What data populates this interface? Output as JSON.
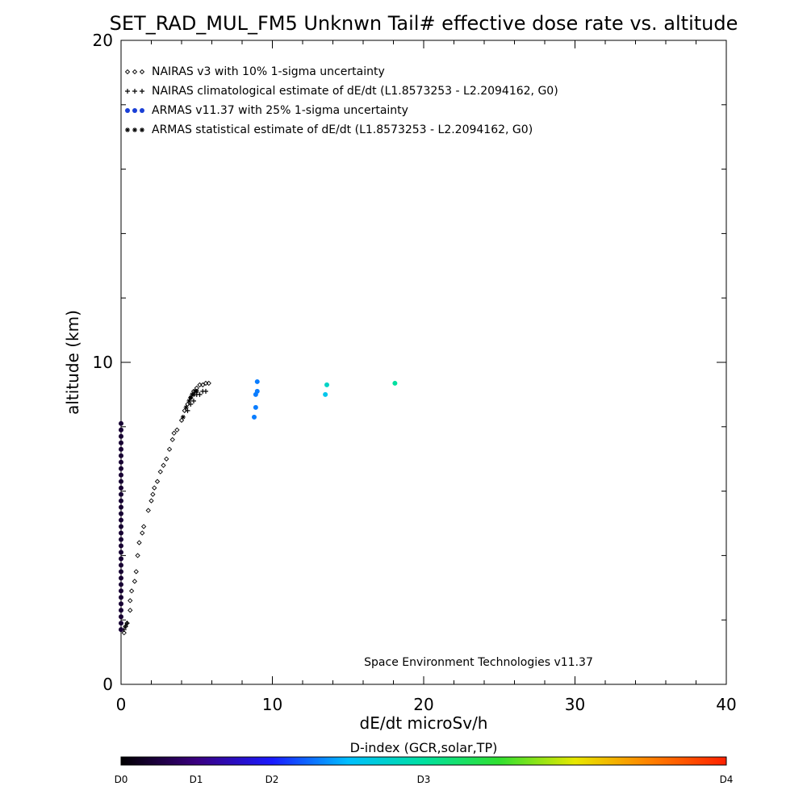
{
  "chart_data": {
    "type": "scatter",
    "title": "SET_RAD_MUL_FM5 Unknwn Tail#  effective dose rate vs. altitude",
    "xlabel": "dE/dt microSv/h",
    "ylabel": "altitude (km)",
    "xlim": [
      0,
      40
    ],
    "ylim": [
      0,
      20
    ],
    "xticks": [
      "0",
      "10",
      "20",
      "30",
      "40"
    ],
    "yticks": [
      "0",
      "10",
      "20"
    ],
    "credit": "Space Environment Technologies v11.37",
    "legend_position": "top-left",
    "legend": [
      {
        "symbol": "◇◇◇",
        "label": "NAIRAS v3 with 10% 1-sigma uncertainty"
      },
      {
        "symbol": "+++",
        "label": "NAIRAS climatological estimate of dE/dt (L1.8573253 - L2.2094162, G0)"
      },
      {
        "symbol": "●●●",
        "label": "ARMAS v11.37 with 25% 1-sigma uncertainty"
      },
      {
        "symbol": "***",
        "label": "ARMAS statistical estimate of dE/dt (L1.8573253 - L2.2094162, G0)"
      }
    ],
    "series": [
      {
        "name": "NAIRAS v3 with 10% 1-sigma uncertainty",
        "marker": "diamond",
        "x": [
          0.2,
          0.3,
          0.4,
          0.6,
          0.6,
          0.7,
          0.9,
          1.0,
          1.1,
          1.2,
          1.4,
          1.5,
          1.8,
          2.0,
          2.1,
          2.2,
          2.4,
          2.6,
          2.8,
          3.0,
          3.2,
          3.4,
          3.5,
          3.7,
          4.0,
          4.2,
          4.4,
          4.6,
          4.8,
          5.0,
          5.2,
          5.4,
          5.6,
          5.8
        ],
        "y": [
          1.6,
          1.8,
          1.9,
          2.3,
          2.6,
          2.9,
          3.2,
          3.5,
          4.0,
          4.4,
          4.7,
          4.9,
          5.4,
          5.7,
          5.9,
          6.1,
          6.3,
          6.6,
          6.8,
          7.0,
          7.3,
          7.6,
          7.8,
          7.9,
          8.2,
          8.5,
          8.7,
          8.9,
          9.1,
          9.2,
          9.3,
          9.3,
          9.35,
          9.35
        ]
      },
      {
        "name": "NAIRAS climatological estimate of dE/dt (L1.8573253 - L2.2094162, G0)",
        "marker": "plus",
        "x": [
          0.2,
          0.3,
          0.4,
          4.4,
          4.6,
          4.8,
          5.0,
          5.2,
          5.4,
          5.6
        ],
        "y": [
          1.7,
          1.8,
          1.9,
          8.5,
          8.7,
          8.8,
          9.0,
          9.0,
          9.1,
          9.1
        ]
      },
      {
        "name": "ARMAS v11.37 with 25% 1-sigma uncertainty",
        "marker": "dot",
        "x": [
          0,
          0,
          0,
          0,
          0,
          0,
          0,
          0,
          0,
          0,
          0,
          0,
          0,
          0,
          0,
          0,
          0,
          0,
          0,
          0,
          0,
          0,
          0,
          0,
          0,
          0,
          0,
          0,
          0,
          0,
          0,
          0,
          0,
          8.8,
          8.9,
          8.9,
          9.0,
          9.0,
          13.5,
          13.6,
          18.1
        ],
        "y": [
          1.7,
          1.9,
          2.1,
          2.3,
          2.5,
          2.7,
          2.9,
          3.1,
          3.3,
          3.5,
          3.7,
          3.9,
          4.1,
          4.3,
          4.5,
          4.7,
          4.9,
          5.1,
          5.3,
          5.5,
          5.7,
          5.9,
          6.1,
          6.3,
          6.5,
          6.7,
          6.9,
          7.1,
          7.3,
          7.5,
          7.7,
          7.9,
          8.1,
          8.3,
          8.6,
          9.0,
          9.1,
          9.4,
          9.0,
          9.3,
          9.35
        ],
        "d_index": [
          0.2,
          0.2,
          0.2,
          0.2,
          0.2,
          0.2,
          0.2,
          0.2,
          0.2,
          0.2,
          0.2,
          0.2,
          0.2,
          0.2,
          0.2,
          0.2,
          0.2,
          0.2,
          0.2,
          0.2,
          0.2,
          0.2,
          0.2,
          0.2,
          0.2,
          0.2,
          0.2,
          0.2,
          0.2,
          0.2,
          0.2,
          0.2,
          0.2,
          1.3,
          1.3,
          1.3,
          1.3,
          1.3,
          1.6,
          1.8,
          2.0
        ]
      },
      {
        "name": "ARMAS statistical estimate of dE/dt (L1.8573253 - L2.2094162, G0)",
        "marker": "asterisk",
        "x": [
          4.1,
          4.3,
          4.5,
          4.6,
          4.7,
          4.8,
          4.9,
          5.0
        ],
        "y": [
          8.3,
          8.6,
          8.8,
          8.9,
          9.0,
          9.0,
          9.1,
          9.1
        ]
      }
    ],
    "colorbar": {
      "title": "D-index (GCR,solar,TP)",
      "ticks": [
        {
          "label": "D0",
          "value": 0
        },
        {
          "label": "D1",
          "value": 1
        },
        {
          "label": "D2",
          "value": 2
        },
        {
          "label": "D3",
          "value": 3
        },
        {
          "label": "D4",
          "value": 4
        }
      ],
      "colors": [
        "#000000",
        "#3a0080",
        "#1a1aff",
        "#00bfff",
        "#00e0a0",
        "#30e030",
        "#e8e800",
        "#ff8000",
        "#ff2000"
      ]
    }
  }
}
